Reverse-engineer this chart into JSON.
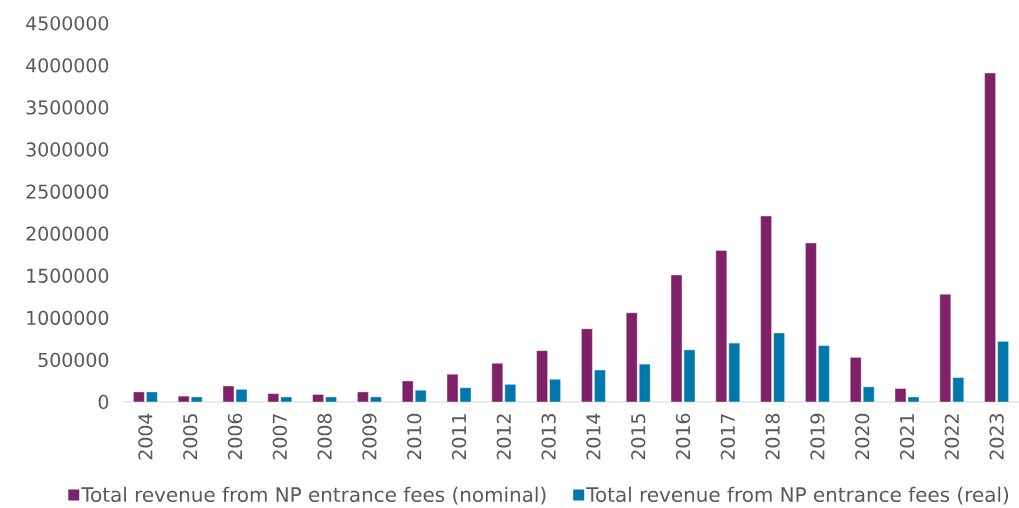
{
  "chart_data": {
    "type": "bar",
    "categories": [
      "2004",
      "2005",
      "2006",
      "2007",
      "2008",
      "2009",
      "2010",
      "2011",
      "2012",
      "2013",
      "2014",
      "2015",
      "2016",
      "2017",
      "2018",
      "2019",
      "2020",
      "2021",
      "2022",
      "2023"
    ],
    "series": [
      {
        "name": "Total revenue from NP entrance fees (nominal)",
        "color": "#7f2169",
        "values": [
          120000,
          70000,
          190000,
          100000,
          90000,
          120000,
          250000,
          330000,
          460000,
          610000,
          870000,
          1060000,
          1510000,
          1800000,
          2210000,
          1890000,
          530000,
          160000,
          1280000,
          3910000
        ]
      },
      {
        "name": "Total revenue from NP entrance fees (real)",
        "color": "#0078ab",
        "values": [
          120000,
          60000,
          150000,
          60000,
          60000,
          60000,
          140000,
          170000,
          210000,
          270000,
          380000,
          450000,
          620000,
          700000,
          820000,
          670000,
          180000,
          60000,
          290000,
          720000
        ]
      }
    ],
    "ylim": [
      0,
      4500000
    ],
    "yticks": [
      0,
      500000,
      1000000,
      1500000,
      2000000,
      2500000,
      3000000,
      3500000,
      4000000,
      4500000
    ],
    "legend": "bottom"
  }
}
